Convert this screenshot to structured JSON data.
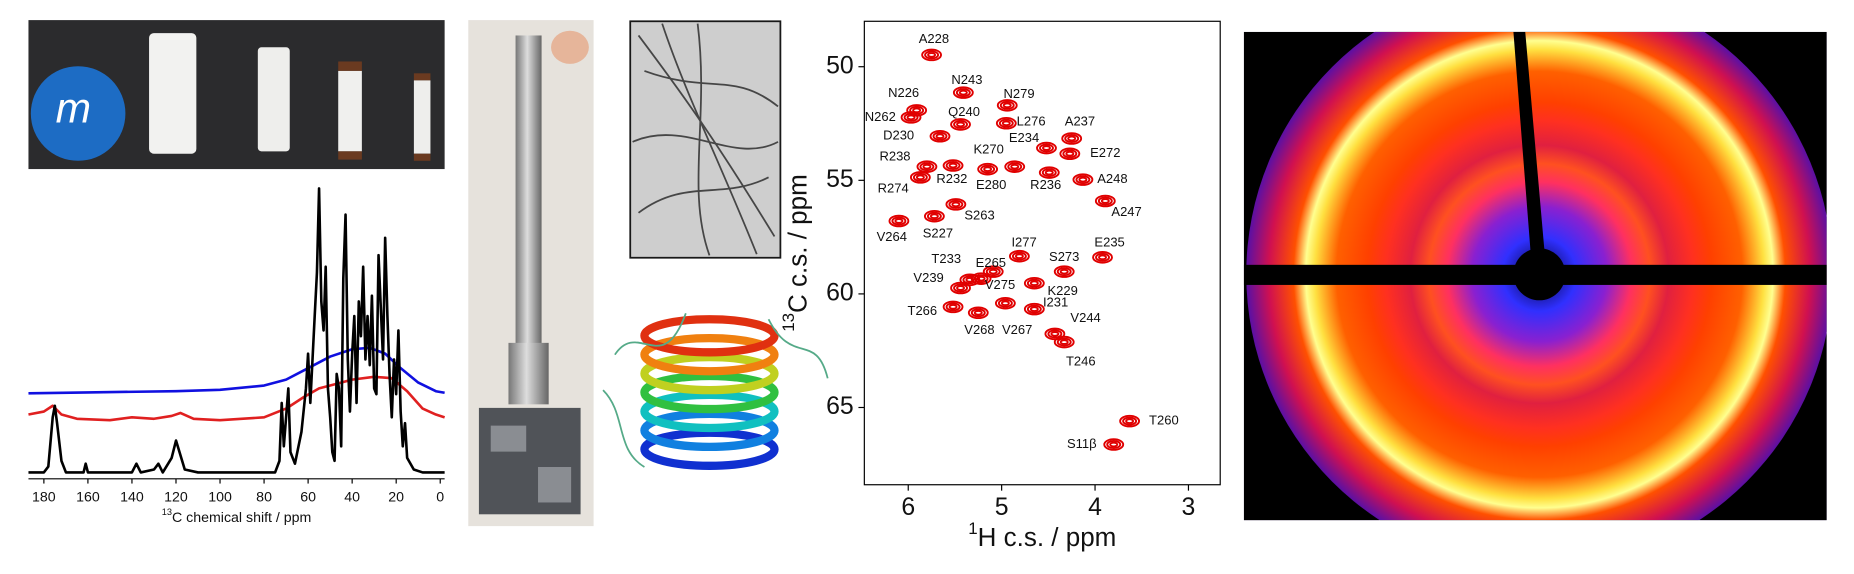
{
  "logo_text": "m",
  "chart_data": [
    {
      "type": "line",
      "x_label_sup": "13",
      "x_label": "C chemical shift / ppm",
      "xlim": [
        187,
        -2
      ],
      "ylim": [
        0,
        100
      ],
      "xticks": [
        180,
        160,
        140,
        120,
        100,
        80,
        60,
        40,
        20,
        0
      ],
      "series": [
        {
          "color": "#1010e0",
          "x": [
            187,
            160,
            120,
            100,
            80,
            70,
            60,
            50,
            40,
            32,
            25,
            18,
            10,
            2,
            -2
          ],
          "values": [
            28.3,
            28.6,
            29,
            29.5,
            31,
            33,
            37,
            41,
            43.5,
            44,
            42,
            37,
            32,
            29,
            28.5
          ]
        },
        {
          "color": "#e02020",
          "x": [
            187,
            180,
            176,
            172,
            165,
            150,
            140,
            130,
            122,
            118,
            112,
            100,
            80,
            70,
            62,
            55,
            50,
            40,
            30,
            22,
            15,
            8,
            2,
            -2
          ],
          "values": [
            21,
            22,
            24,
            21,
            19.5,
            19,
            20,
            19.5,
            20.5,
            21.5,
            19.5,
            19,
            20,
            23,
            27,
            30,
            31,
            33,
            34,
            33.5,
            29,
            23,
            21,
            20
          ]
        },
        {
          "color": "#000000",
          "x": [
            187,
            180,
            178,
            176,
            175,
            174,
            172,
            170,
            162,
            161,
            160,
            140,
            138,
            136,
            130,
            128,
            126,
            122,
            120,
            118,
            116,
            110,
            75,
            73,
            72,
            71,
            69,
            68,
            66,
            63,
            61,
            60,
            59,
            57,
            56,
            55,
            54,
            53,
            52,
            51,
            50,
            49,
            48,
            47,
            46,
            45,
            44,
            43,
            42,
            41,
            40,
            39,
            38,
            37,
            36,
            35,
            34,
            33,
            32,
            31,
            30,
            29,
            28,
            27,
            26,
            25,
            24,
            23,
            22,
            21,
            20,
            19,
            18,
            17,
            16,
            15,
            12,
            8,
            0,
            -2
          ],
          "values": [
            1,
            1,
            3,
            20,
            24,
            18,
            5,
            1,
            1,
            4,
            1,
            1,
            4,
            1,
            2,
            4,
            1,
            6,
            12,
            7,
            2,
            1,
            1,
            5,
            25,
            10,
            30,
            8,
            4,
            15,
            30,
            42,
            25,
            55,
            70,
            99,
            60,
            50,
            72,
            30,
            20,
            8,
            5,
            35,
            30,
            10,
            68,
            90,
            40,
            22,
            42,
            55,
            25,
            60,
            48,
            72,
            40,
            55,
            38,
            62,
            30,
            28,
            76,
            58,
            40,
            82,
            55,
            35,
            20,
            40,
            28,
            50,
            22,
            10,
            18,
            6,
            2,
            1,
            1,
            1
          ]
        }
      ]
    },
    {
      "type": "scatter",
      "x_label_sup": "1",
      "x_label": "H c.s. / ppm",
      "y_label_sup": "13",
      "y_label": "C c.s. / ppm",
      "xlim": [
        6.47,
        2.66
      ],
      "ylim": [
        48.0,
        68.4
      ],
      "xticks": [
        6,
        5,
        4,
        3
      ],
      "yticks": [
        50,
        55,
        60,
        65
      ],
      "series": [
        {
          "color": "#e00000",
          "labels": [
            "A228",
            "N243",
            "N279",
            "N226",
            "N262",
            "Q240",
            "L276",
            "A237",
            "D230",
            "E234",
            "E272",
            "K270",
            "R238",
            "R232",
            "E280",
            "R236",
            "A248",
            "R274",
            "A247",
            "S263",
            "V264",
            "S227",
            "I277",
            "S273",
            "E235",
            "T233",
            "E265",
            "V239",
            "V275",
            "K229",
            "T266",
            "I231",
            "V268",
            "V267",
            "V244",
            "T246",
            "T260",
            "S11β"
          ],
          "x": [
            5.75,
            5.41,
            4.94,
            5.91,
            5.97,
            5.44,
            4.95,
            4.25,
            5.66,
            4.52,
            4.27,
            4.86,
            5.8,
            5.52,
            5.15,
            4.49,
            4.13,
            5.87,
            3.89,
            5.49,
            6.1,
            5.72,
            4.81,
            4.33,
            3.92,
            5.34,
            5.09,
            5.44,
            5.22,
            4.65,
            5.52,
            4.65,
            5.25,
            4.96,
            4.43,
            4.33,
            3.63,
            3.8
          ],
          "values": [
            49.48,
            51.14,
            51.7,
            51.92,
            52.23,
            52.54,
            52.49,
            53.16,
            53.06,
            53.58,
            53.83,
            54.4,
            54.4,
            54.35,
            54.51,
            54.66,
            54.97,
            54.87,
            55.91,
            56.06,
            56.79,
            56.58,
            58.34,
            59.02,
            58.39,
            59.38,
            59.02,
            59.74,
            59.33,
            59.53,
            60.57,
            60.67,
            60.83,
            60.41,
            61.76,
            62.12,
            65.6,
            66.63
          ]
        }
      ]
    }
  ]
}
